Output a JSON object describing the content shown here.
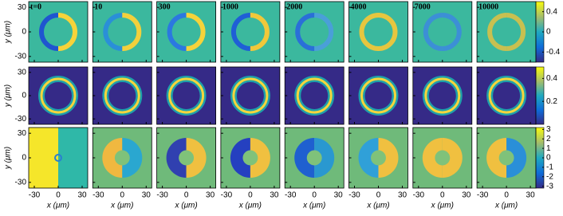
{
  "panel_times": [
    "t=0",
    "10",
    "300",
    "1000",
    "2000",
    "4000",
    "7000",
    "10000"
  ],
  "axes": {
    "xlabel": "x (μm)",
    "ylabel": "y (μm)",
    "xlim": [
      -37,
      37
    ],
    "ylim": [
      -37,
      37
    ],
    "xticks": [
      -30,
      0,
      30
    ],
    "yticks": [
      30,
      0,
      -30
    ]
  },
  "colorbars": [
    {
      "lim": [
        -0.6,
        0.6
      ],
      "ticks": [
        0.4,
        0,
        -0.4
      ]
    },
    {
      "lim": [
        0,
        0.5
      ],
      "ticks": [
        0.4,
        0.2
      ]
    },
    {
      "lim": [
        -3.2,
        3.2
      ],
      "ticks": [
        3,
        2,
        1,
        0,
        -1,
        -2,
        -3
      ]
    }
  ]
}
